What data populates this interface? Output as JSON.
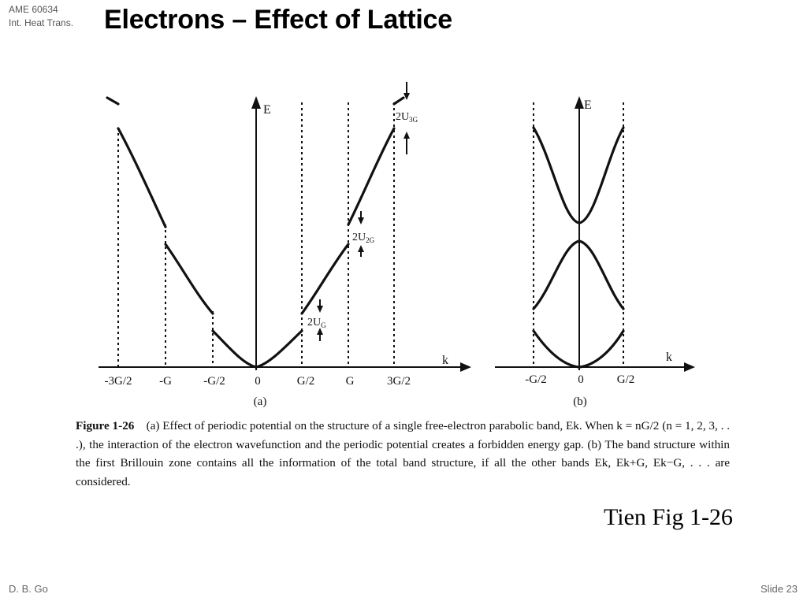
{
  "header": {
    "course_code": "AME 60634",
    "course_name": "Int. Heat Trans.",
    "title": "Electrons – Effect of Lattice"
  },
  "figure": {
    "panel_a": {
      "axis_y": "E",
      "axis_x": "k",
      "ticks": [
        "-3G/2",
        "-G",
        "-G/2",
        "0",
        "G/2",
        "G",
        "3G/2"
      ],
      "label": "(a)",
      "gap_labels": [
        "2U",
        "2U",
        "2U"
      ],
      "gap_subscripts": [
        "G",
        "2G",
        "3G"
      ]
    },
    "panel_b": {
      "axis_y": "E",
      "axis_x": "k",
      "ticks": [
        "-G/2",
        "0",
        "G/2"
      ],
      "label": "(b)"
    },
    "caption": {
      "label": "Figure 1-26",
      "text": "(a) Effect of periodic potential on the structure of a single free-electron parabolic band, Ek. When k = nG/2 (n = 1, 2, 3, . . .), the interaction of the electron wavefunction and the periodic potential creates a forbidden energy gap. (b) The band structure within the first Brillouin zone contains all the information of the total band structure, if all the other bands Ek, Ek+G, Ek−G, . . . are considered."
    },
    "source": "Tien Fig 1-26"
  },
  "footer": {
    "author": "D. B. Go",
    "slide": "Slide 23"
  }
}
